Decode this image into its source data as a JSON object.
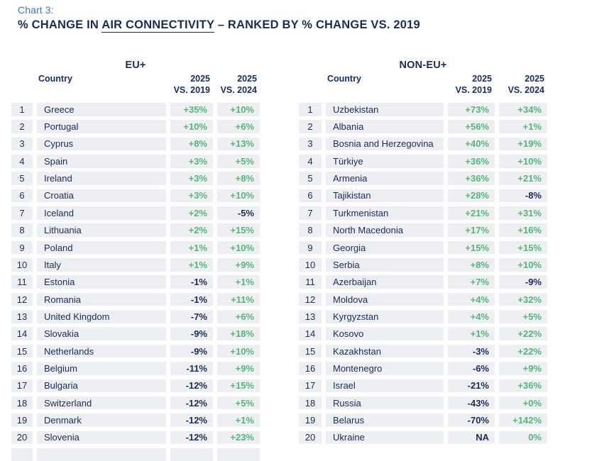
{
  "header": {
    "chart_label": "Chart 3:",
    "title_prefix": "% CHANGE IN ",
    "title_underlined": "AIR CONNECTIVITY",
    "title_suffix": " – RANKED BY % CHANGE VS. 2019"
  },
  "colors": {
    "navy": "#1b2b5c",
    "green": "#53b778",
    "row_background": "#edeff3",
    "chart_label_blue": "#3d7ab8",
    "page_background": "#ffffff"
  },
  "chart_data": [
    {
      "type": "table",
      "group": "EU+",
      "headers": {
        "country": "Country",
        "c1_line1": "2025",
        "c1_line2": "VS. 2019",
        "c2_line1": "2025",
        "c2_line2": "VS. 2024"
      },
      "has_partial_next_row": true,
      "rows": [
        {
          "rank": 1,
          "country": "Greece",
          "vs2019": "+35%",
          "vs2024": "+10%"
        },
        {
          "rank": 2,
          "country": "Portugal",
          "vs2019": "+10%",
          "vs2024": "+6%"
        },
        {
          "rank": 3,
          "country": "Cyprus",
          "vs2019": "+8%",
          "vs2024": "+13%"
        },
        {
          "rank": 4,
          "country": "Spain",
          "vs2019": "+3%",
          "vs2024": "+5%"
        },
        {
          "rank": 5,
          "country": "Ireland",
          "vs2019": "+3%",
          "vs2024": "+8%"
        },
        {
          "rank": 6,
          "country": "Croatia",
          "vs2019": "+3%",
          "vs2024": "+10%"
        },
        {
          "rank": 7,
          "country": "Iceland",
          "vs2019": "+2%",
          "vs2024": "-5%"
        },
        {
          "rank": 8,
          "country": "Lithuania",
          "vs2019": "+2%",
          "vs2024": "+15%"
        },
        {
          "rank": 9,
          "country": "Poland",
          "vs2019": "+1%",
          "vs2024": "+10%"
        },
        {
          "rank": 10,
          "country": "Italy",
          "vs2019": "+1%",
          "vs2024": "+9%"
        },
        {
          "rank": 11,
          "country": "Estonia",
          "vs2019": "-1%",
          "vs2024": "+1%"
        },
        {
          "rank": 12,
          "country": "Romania",
          "vs2019": "-1%",
          "vs2024": "+11%"
        },
        {
          "rank": 13,
          "country": "United Kingdom",
          "vs2019": "-7%",
          "vs2024": "+6%"
        },
        {
          "rank": 14,
          "country": "Slovakia",
          "vs2019": "-9%",
          "vs2024": "+18%"
        },
        {
          "rank": 15,
          "country": "Netherlands",
          "vs2019": "-9%",
          "vs2024": "+10%"
        },
        {
          "rank": 16,
          "country": "Belgium",
          "vs2019": "-11%",
          "vs2024": "+9%"
        },
        {
          "rank": 17,
          "country": "Bulgaria",
          "vs2019": "-12%",
          "vs2024": "+15%"
        },
        {
          "rank": 18,
          "country": "Switzerland",
          "vs2019": "-12%",
          "vs2024": "+5%"
        },
        {
          "rank": 19,
          "country": "Denmark",
          "vs2019": "-12%",
          "vs2024": "+1%"
        },
        {
          "rank": 20,
          "country": "Slovenia",
          "vs2019": "-12%",
          "vs2024": "+23%"
        }
      ]
    },
    {
      "type": "table",
      "group": "NON-EU+",
      "headers": {
        "country": "Country",
        "c1_line1": "2025",
        "c1_line2": "VS. 2019",
        "c2_line1": "2025",
        "c2_line2": "VS. 2024"
      },
      "has_partial_next_row": false,
      "rows": [
        {
          "rank": 1,
          "country": "Uzbekistan",
          "vs2019": "+73%",
          "vs2024": "+34%"
        },
        {
          "rank": 2,
          "country": "Albania",
          "vs2019": "+56%",
          "vs2024": "+1%"
        },
        {
          "rank": 3,
          "country": "Bosnia and Herzegovina",
          "vs2019": "+40%",
          "vs2024": "+19%"
        },
        {
          "rank": 4,
          "country": "Türkiye",
          "vs2019": "+36%",
          "vs2024": "+10%"
        },
        {
          "rank": 5,
          "country": "Armenia",
          "vs2019": "+36%",
          "vs2024": "+21%"
        },
        {
          "rank": 6,
          "country": "Tajikistan",
          "vs2019": "+28%",
          "vs2024": "-8%"
        },
        {
          "rank": 7,
          "country": "Turkmenistan",
          "vs2019": "+21%",
          "vs2024": "+31%"
        },
        {
          "rank": 8,
          "country": "North Macedonia",
          "vs2019": "+17%",
          "vs2024": "+16%"
        },
        {
          "rank": 9,
          "country": "Georgia",
          "vs2019": "+15%",
          "vs2024": "+15%"
        },
        {
          "rank": 10,
          "country": "Serbia",
          "vs2019": "+8%",
          "vs2024": "+10%"
        },
        {
          "rank": 11,
          "country": "Azerbaijan",
          "vs2019": "+7%",
          "vs2024": "-9%"
        },
        {
          "rank": 12,
          "country": "Moldova",
          "vs2019": "+4%",
          "vs2024": "+32%"
        },
        {
          "rank": 13,
          "country": "Kyrgyzstan",
          "vs2019": "+4%",
          "vs2024": "+5%"
        },
        {
          "rank": 14,
          "country": "Kosovo",
          "vs2019": "+1%",
          "vs2024": "+22%"
        },
        {
          "rank": 15,
          "country": "Kazakhstan",
          "vs2019": "-3%",
          "vs2024": "+22%"
        },
        {
          "rank": 16,
          "country": "Montenegro",
          "vs2019": "-6%",
          "vs2024": "+9%"
        },
        {
          "rank": 17,
          "country": "Israel",
          "vs2019": "-21%",
          "vs2024": "+36%"
        },
        {
          "rank": 18,
          "country": "Russia",
          "vs2019": "-43%",
          "vs2024": "+0%"
        },
        {
          "rank": 19,
          "country": "Belarus",
          "vs2019": "-70%",
          "vs2024": "+142%"
        },
        {
          "rank": 20,
          "country": "Ukraine",
          "vs2019": "NA",
          "vs2024": "0%"
        }
      ]
    }
  ]
}
